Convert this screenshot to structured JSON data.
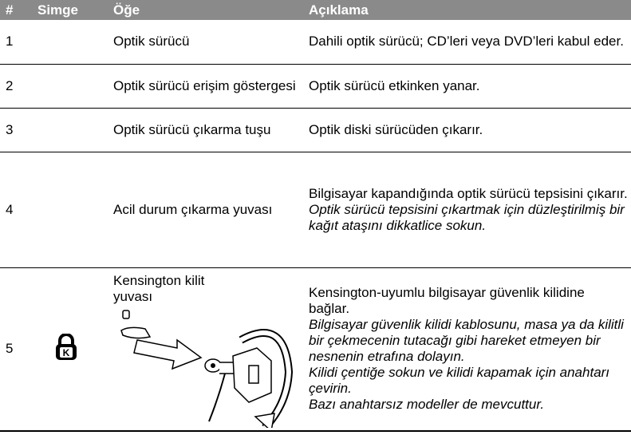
{
  "table": {
    "header": [
      "#",
      "Simge",
      "Öğe",
      "Açıklama"
    ],
    "rows": [
      {
        "number": "1",
        "item": "Optik sürücü",
        "description": "Dahili optik sürücü; CD’leri veya DVD’leri kabul eder."
      },
      {
        "number": "2",
        "item": "Optik sürücü erişim göstergesi",
        "description": "Optik sürücü etkinken yanar."
      },
      {
        "number": "3",
        "item": "Optik sürücü çıkarma tuşu",
        "description": "Optik diski sürücüden çıkarır."
      },
      {
        "number": "4",
        "item": "Acil durum çıkarma yuvası",
        "description": "Bilgisayar kapandığında optik sürücü tepsisini çıkarır.",
        "notes": [
          "Optik sürücü tepsisini çıkartmak için düzleştirilmiş bir kağıt ataşını dikkatlice sokun."
        ]
      },
      {
        "number": "5",
        "item": "Kensington kilit yuvası",
        "description": "Kensington-uyumlu bilgisayar güvenlik kilidine bağlar.",
        "notes": [
          "Bilgisayar güvenlik kilidi kablosunu, masa ya da kilitli bir çekmecenin tutacağı gibi hareket etmeyen bir nesnenin etrafına dolayın.",
          "Kilidi çentiğe sokun ve kilidi kapamak için anahtarı çevirin.",
          "Bazı anahtarsız modeller de mevcuttur."
        ]
      }
    ]
  }
}
